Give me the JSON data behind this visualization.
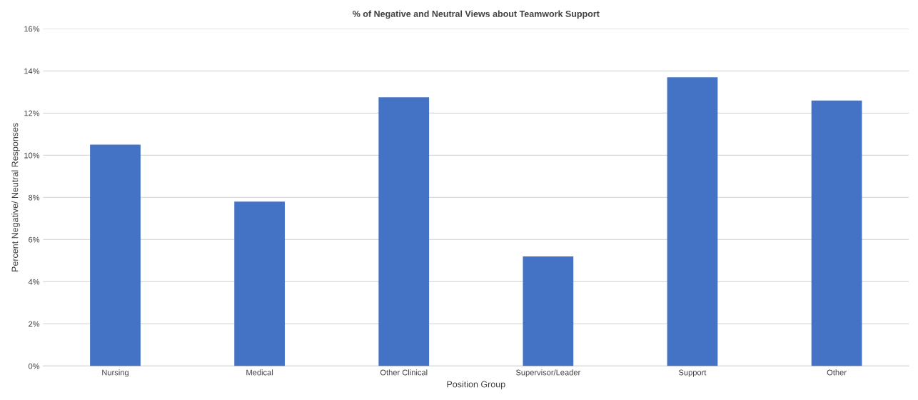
{
  "chart_data": {
    "type": "bar",
    "title": "% of Negative and Neutral Views about Teamwork Support",
    "xlabel": "Position Group",
    "ylabel": "Percent Negative/ Neutral Responses",
    "categories": [
      "Nursing",
      "Medical",
      "Other Clinical",
      "Supervisor/Leader",
      "Support",
      "Other"
    ],
    "values": [
      10.5,
      7.8,
      12.75,
      5.2,
      13.7,
      12.6
    ],
    "color": "#4472c4",
    "ylim": [
      0,
      16
    ],
    "yticks": [
      {
        "value": 0,
        "label": "0%"
      },
      {
        "value": 2,
        "label": "2%"
      },
      {
        "value": 4,
        "label": "4%"
      },
      {
        "value": 6,
        "label": "6%"
      },
      {
        "value": 8,
        "label": "8%"
      },
      {
        "value": 10,
        "label": "10%"
      },
      {
        "value": 12,
        "label": "12%"
      },
      {
        "value": 14,
        "label": "14%"
      },
      {
        "value": 16,
        "label": "16%"
      }
    ],
    "grid": "y"
  }
}
